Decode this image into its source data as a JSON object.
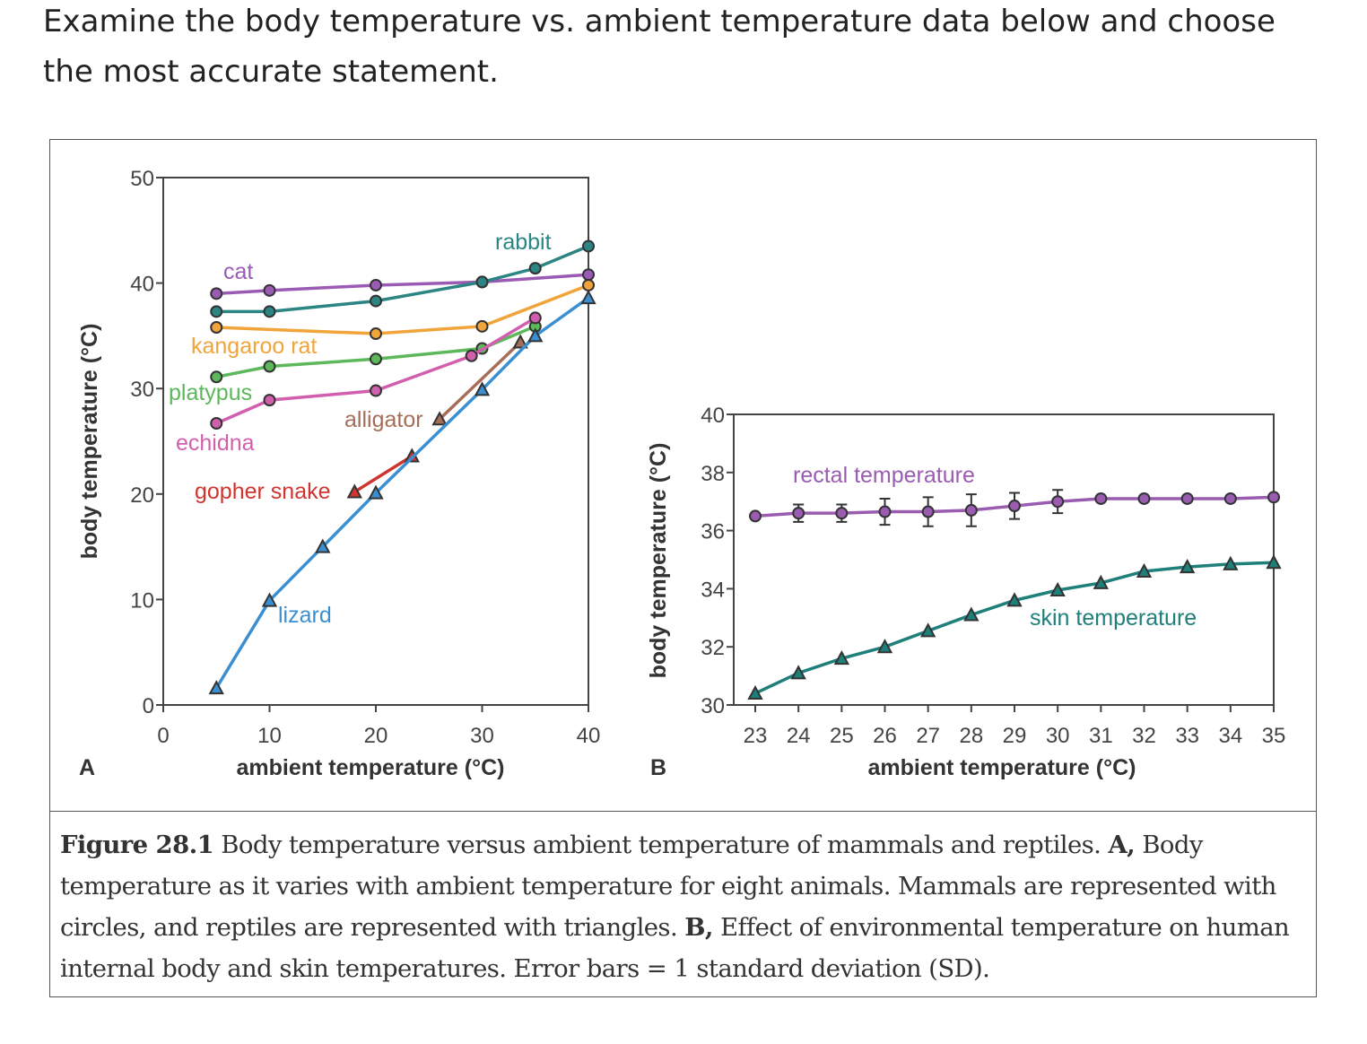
{
  "question": "Examine the body temperature vs. ambient temperature data below and choose the most accurate statement.",
  "caption": {
    "figure_label": "Figure 28.1",
    "text1": " Body temperature versus ambient temperature of mammals and reptiles. ",
    "a_label": "A,",
    "text2": " Body temperature as it varies with ambient temperature for eight animals. Mammals are represented with circles, and reptiles are represented with triangles. ",
    "b_label": "B,",
    "text3": " Effect of environmental temperature on human internal body and skin temperatures. Error bars = 1 standard deviation (SD)."
  },
  "chart_data": [
    {
      "panel": "A",
      "type": "line",
      "xlabel": "ambient temperature (°C)",
      "ylabel": "body temperature (°C)",
      "xlim": [
        0,
        40
      ],
      "ylim": [
        0,
        50
      ],
      "xticks": [
        0,
        10,
        20,
        30,
        40
      ],
      "yticks": [
        0,
        10,
        20,
        30,
        40,
        50
      ],
      "grid": false,
      "series": [
        {
          "name": "cat",
          "marker": "circle",
          "color": "#9b5bb4",
          "x": [
            5,
            10,
            20,
            30,
            40
          ],
          "y": [
            39.0,
            39.3,
            39.8,
            40.1,
            40.8
          ]
        },
        {
          "name": "rabbit",
          "marker": "circle",
          "color": "#2a8583",
          "x": [
            5,
            10,
            20,
            30,
            35,
            40
          ],
          "y": [
            37.3,
            37.3,
            38.3,
            40.1,
            41.4,
            43.5
          ]
        },
        {
          "name": "kangaroo rat",
          "marker": "circle",
          "color": "#f0a43a",
          "x": [
            5,
            20,
            30,
            40
          ],
          "y": [
            35.8,
            35.2,
            35.9,
            39.8
          ]
        },
        {
          "name": "platypus",
          "marker": "circle",
          "color": "#5cb85a",
          "x": [
            5,
            10,
            20,
            30,
            35
          ],
          "y": [
            31.1,
            32.1,
            32.8,
            33.8,
            35.9
          ]
        },
        {
          "name": "echidna",
          "marker": "circle",
          "color": "#d25fae",
          "x": [
            5,
            10,
            20,
            29,
            35
          ],
          "y": [
            26.7,
            28.9,
            29.8,
            33.1,
            36.7
          ]
        },
        {
          "name": "alligator",
          "marker": "triangle",
          "color": "#a66e58",
          "x": [
            26,
            33.6
          ],
          "y": [
            27.1,
            34.4
          ]
        },
        {
          "name": "gopher snake",
          "marker": "triangle",
          "color": "#d0342f",
          "x": [
            18,
            23.4
          ],
          "y": [
            20.2,
            23.6
          ]
        },
        {
          "name": "lizard",
          "marker": "triangle",
          "color": "#3a8fd2",
          "x": [
            5,
            10,
            15,
            20,
            30,
            35,
            40
          ],
          "y": [
            1.6,
            9.9,
            15.0,
            20.1,
            29.9,
            35.0,
            38.6
          ]
        }
      ]
    },
    {
      "panel": "B",
      "type": "line",
      "xlabel": "ambient temperature (°C)",
      "ylabel": "body temperature (°C)",
      "xlim": [
        23,
        35
      ],
      "ylim": [
        30,
        40
      ],
      "xticks": [
        23,
        24,
        25,
        26,
        27,
        28,
        29,
        30,
        31,
        32,
        33,
        34,
        35
      ],
      "yticks": [
        30,
        32,
        34,
        36,
        38,
        40
      ],
      "grid": false,
      "series": [
        {
          "name": "rectal temperature",
          "marker": "circle",
          "color": "#9a5cb0",
          "x": [
            23,
            24,
            25,
            26,
            27,
            28,
            29,
            30,
            31,
            32,
            33,
            34,
            35
          ],
          "y": [
            36.5,
            36.6,
            36.6,
            36.65,
            36.65,
            36.7,
            36.85,
            37.0,
            37.1,
            37.1,
            37.1,
            37.1,
            37.15
          ],
          "sd": [
            0,
            0.3,
            0.3,
            0.45,
            0.5,
            0.55,
            0.45,
            0.4,
            0,
            0,
            0,
            0,
            0
          ]
        },
        {
          "name": "skin temperature",
          "marker": "triangle",
          "color": "#1f7f7a",
          "x": [
            23,
            24,
            25,
            26,
            27,
            28,
            29,
            30,
            31,
            32,
            33,
            34,
            35
          ],
          "y": [
            30.4,
            31.1,
            31.6,
            32.0,
            32.55,
            33.1,
            33.6,
            33.95,
            34.2,
            34.6,
            34.75,
            34.85,
            34.9
          ]
        }
      ]
    }
  ]
}
